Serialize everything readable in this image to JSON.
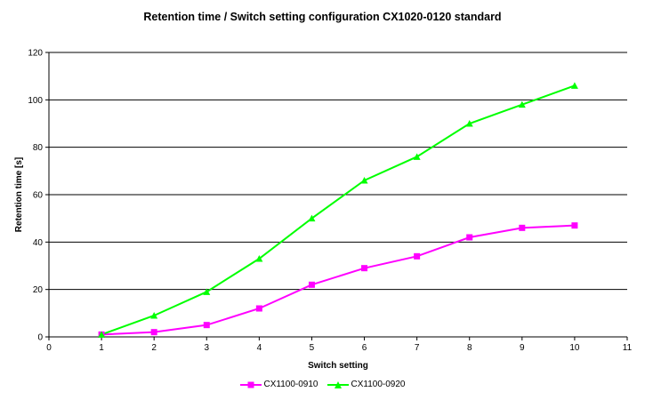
{
  "chart_data": {
    "type": "line",
    "title": "Retention time / Switch setting configuration CX1020-0120 standard",
    "xlabel": "Switch setting",
    "ylabel": "Retention time [s]",
    "xlim": [
      0,
      11
    ],
    "ylim": [
      0,
      120
    ],
    "xticks": [
      0,
      1,
      2,
      3,
      4,
      5,
      6,
      7,
      8,
      9,
      10,
      11
    ],
    "yticks": [
      0,
      20,
      40,
      60,
      80,
      100,
      120
    ],
    "grid": "horizontal",
    "legend_position": "bottom",
    "x": [
      1,
      2,
      3,
      4,
      5,
      6,
      7,
      8,
      9,
      10
    ],
    "series": [
      {
        "name": "CX1100-0910",
        "color": "#ff00ff",
        "marker": "square",
        "values": [
          1,
          2,
          5,
          12,
          22,
          29,
          34,
          42,
          46,
          47
        ]
      },
      {
        "name": "CX1100-0920",
        "color": "#00ff00",
        "marker": "triangle",
        "values": [
          1,
          9,
          19,
          33,
          50,
          66,
          76,
          90,
          98,
          106
        ]
      }
    ]
  }
}
